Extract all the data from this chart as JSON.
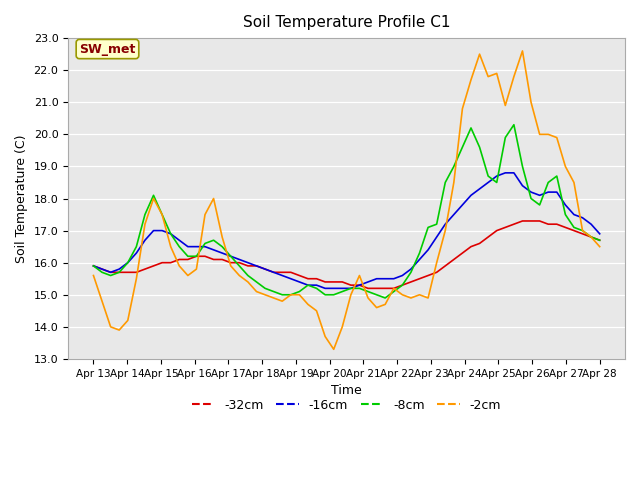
{
  "title": "Soil Temperature Profile C1",
  "xlabel": "Time",
  "ylabel": "Soil Temperature (C)",
  "ylim": [
    13.0,
    23.0
  ],
  "yticks": [
    13.0,
    14.0,
    15.0,
    16.0,
    17.0,
    18.0,
    19.0,
    20.0,
    21.0,
    22.0,
    23.0
  ],
  "bg_color": "#e8e8e8",
  "plot_bg_color": "#e8e8e8",
  "annotation": "SW_met",
  "annotation_box_facecolor": "#ffffcc",
  "annotation_box_edgecolor": "#999900",
  "annotation_text_color": "#880000",
  "colors": {
    "-32cm": "#dd0000",
    "-16cm": "#0000dd",
    "-8cm": "#00cc00",
    "-2cm": "#ff9900"
  },
  "x_labels": [
    "Apr 13",
    "Apr 14",
    "Apr 15",
    "Apr 16",
    "Apr 17",
    "Apr 18",
    "Apr 19",
    "Apr 20",
    "Apr 21",
    "Apr 22",
    "Apr 23",
    "Apr 24",
    "Apr 25",
    "Apr 26",
    "Apr 27",
    "Apr 28"
  ],
  "series": {
    "-32cm": [
      15.9,
      15.8,
      15.7,
      15.7,
      15.7,
      15.7,
      15.8,
      15.9,
      16.0,
      16.0,
      16.1,
      16.1,
      16.2,
      16.2,
      16.1,
      16.1,
      16.0,
      16.0,
      15.9,
      15.9,
      15.8,
      15.7,
      15.7,
      15.7,
      15.6,
      15.5,
      15.5,
      15.4,
      15.4,
      15.4,
      15.3,
      15.3,
      15.2,
      15.2,
      15.2,
      15.2,
      15.3,
      15.4,
      15.5,
      15.6,
      15.7,
      15.9,
      16.1,
      16.3,
      16.5,
      16.6,
      16.8,
      17.0,
      17.1,
      17.2,
      17.3,
      17.3,
      17.3,
      17.2,
      17.2,
      17.1,
      17.0,
      16.9,
      16.8,
      16.7
    ],
    "-16cm": [
      15.9,
      15.8,
      15.7,
      15.8,
      16.0,
      16.3,
      16.7,
      17.0,
      17.0,
      16.9,
      16.7,
      16.5,
      16.5,
      16.5,
      16.4,
      16.3,
      16.2,
      16.1,
      16.0,
      15.9,
      15.8,
      15.7,
      15.6,
      15.5,
      15.4,
      15.3,
      15.3,
      15.2,
      15.2,
      15.2,
      15.2,
      15.3,
      15.4,
      15.5,
      15.5,
      15.5,
      15.6,
      15.8,
      16.1,
      16.4,
      16.8,
      17.2,
      17.5,
      17.8,
      18.1,
      18.3,
      18.5,
      18.7,
      18.8,
      18.8,
      18.4,
      18.2,
      18.1,
      18.2,
      18.2,
      17.8,
      17.5,
      17.4,
      17.2,
      16.9
    ],
    "-8cm": [
      15.9,
      15.7,
      15.6,
      15.7,
      16.0,
      16.5,
      17.5,
      18.1,
      17.5,
      16.9,
      16.5,
      16.2,
      16.2,
      16.6,
      16.7,
      16.5,
      16.2,
      15.9,
      15.6,
      15.4,
      15.2,
      15.1,
      15.0,
      15.0,
      15.1,
      15.3,
      15.2,
      15.0,
      15.0,
      15.1,
      15.2,
      15.2,
      15.1,
      15.0,
      14.9,
      15.1,
      15.3,
      15.7,
      16.3,
      17.1,
      17.2,
      18.5,
      19.0,
      19.6,
      20.2,
      19.6,
      18.7,
      18.5,
      19.9,
      20.3,
      19.0,
      18.0,
      17.8,
      18.5,
      18.7,
      17.5,
      17.1,
      17.0,
      16.8,
      16.7
    ],
    "-2cm": [
      15.6,
      14.8,
      14.0,
      13.9,
      14.2,
      15.5,
      17.2,
      18.0,
      17.5,
      16.5,
      15.9,
      15.6,
      15.8,
      17.5,
      18.0,
      16.8,
      15.9,
      15.6,
      15.4,
      15.1,
      15.0,
      14.9,
      14.8,
      15.0,
      15.0,
      14.7,
      14.5,
      13.7,
      13.3,
      14.0,
      15.0,
      15.6,
      14.9,
      14.6,
      14.7,
      15.2,
      15.0,
      14.9,
      15.0,
      14.9,
      16.0,
      17.0,
      18.5,
      20.8,
      21.7,
      22.5,
      21.8,
      21.9,
      20.9,
      21.8,
      22.6,
      21.0,
      20.0,
      20.0,
      19.9,
      19.0,
      18.5,
      17.0,
      16.8,
      16.5
    ]
  }
}
